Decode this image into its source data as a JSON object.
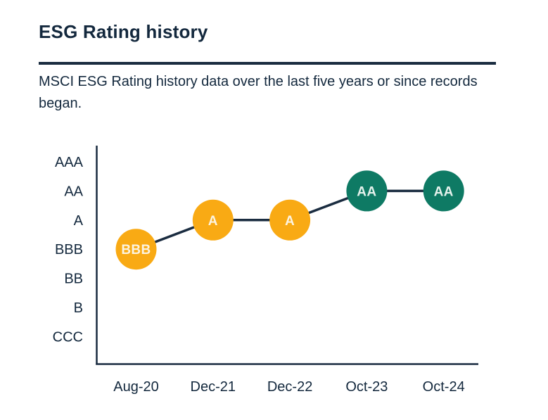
{
  "page": {
    "title": "ESG Rating history",
    "subtitle": "MSCI ESG Rating history data over the last five years or since records began."
  },
  "colors": {
    "text_navy": "#13283D",
    "line_navy": "#1A2C40",
    "amber": "#F9AA14",
    "teal": "#0E7A64",
    "amber_label": "#FCF4E2",
    "teal_label": "#E3F1EB"
  },
  "chart_data": {
    "type": "line",
    "title": "ESG Rating history",
    "xlabel": "",
    "ylabel": "",
    "grid": "off",
    "legend": "none",
    "y_axis_labels": [
      "AAA",
      "AA",
      "A",
      "BBB",
      "BB",
      "B",
      "CCC"
    ],
    "x_categories": [
      "Aug-20",
      "Dec-21",
      "Dec-22",
      "Oct-23",
      "Oct-24"
    ],
    "ratings": [
      "BBB",
      "A",
      "A",
      "AA",
      "AA"
    ],
    "points": [
      {
        "date": "Aug-20",
        "rating": "BBB",
        "fill": "#F9AA14",
        "label_color": "#FCF4E2"
      },
      {
        "date": "Dec-21",
        "rating": "A",
        "fill": "#F9AA14",
        "label_color": "#FCF4E2"
      },
      {
        "date": "Dec-22",
        "rating": "A",
        "fill": "#F9AA14",
        "label_color": "#FCF4E2"
      },
      {
        "date": "Oct-23",
        "rating": "AA",
        "fill": "#0E7A64",
        "label_color": "#E3F1EB"
      },
      {
        "date": "Oct-24",
        "rating": "AA",
        "fill": "#0E7A64",
        "label_color": "#E3F1EB"
      }
    ]
  }
}
